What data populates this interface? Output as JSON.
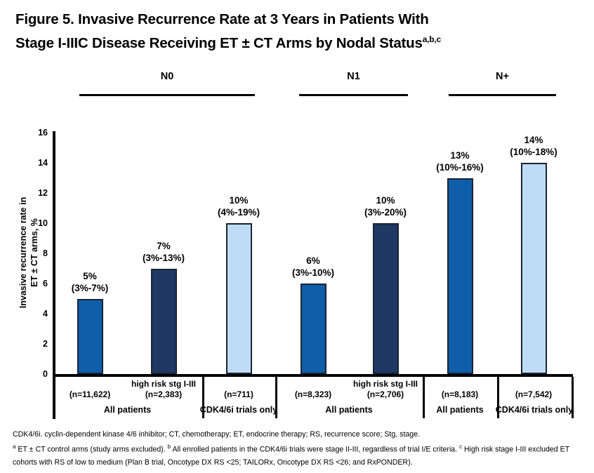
{
  "figure": {
    "title_line1": "Figure 5. Invasive Recurrence Rate at 3 Years in Patients With",
    "title_line2": "Stage I-IIIC Disease Receiving ET ± CT Arms by Nodal Status",
    "title_superscript": "a,b,c"
  },
  "chart_data": {
    "type": "bar",
    "title": "Figure 5. Invasive Recurrence Rate at 3 Years in Patients With Stage I-IIIC Disease Receiving ET ± CT Arms by Nodal Status",
    "ylabel_line1": "Invasive recurrence rate in",
    "ylabel_line2": "ET ± CT arms, %",
    "ylim": [
      0,
      16
    ],
    "yticks": [
      0,
      2,
      4,
      6,
      8,
      10,
      12,
      14,
      16
    ],
    "grid": false,
    "legend": "none",
    "groups": [
      {
        "label": "N0",
        "line_x": [
          113,
          363
        ]
      },
      {
        "label": "N1",
        "line_x": [
          426,
          581
        ]
      },
      {
        "label": "N+",
        "line_x": [
          639,
          792
        ]
      }
    ],
    "bars": [
      {
        "group": "N0",
        "value": 5,
        "label_pct": "5%",
        "label_ci": "(3%-7%)",
        "sublabel": "",
        "n_label": "(n=11,622)",
        "color_key": "medium_blue",
        "center_x": 128
      },
      {
        "group": "N0",
        "value": 7,
        "label_pct": "7%",
        "label_ci": "(3%-13%)",
        "sublabel": "high risk stg I-III",
        "n_label": "(n=2,383)",
        "color_key": "dark_navy",
        "center_x": 233
      },
      {
        "group": "N0",
        "value": 10,
        "label_pct": "10%",
        "label_ci": "(4%-19%)",
        "sublabel": "",
        "n_label": "(n=711)",
        "color_key": "light_blue",
        "center_x": 340
      },
      {
        "group": "N1",
        "value": 6,
        "label_pct": "6%",
        "label_ci": "(3%-10%)",
        "sublabel": "",
        "n_label": "(n=8,323)",
        "color_key": "medium_blue",
        "center_x": 446
      },
      {
        "group": "N1",
        "value": 10,
        "label_pct": "10%",
        "label_ci": "(3%-20%)",
        "sublabel": "high risk stg I-III",
        "n_label": "(n=2,706)",
        "color_key": "dark_navy",
        "center_x": 549
      },
      {
        "group": "N+",
        "value": 13,
        "label_pct": "13%",
        "label_ci": "(10%-16%)",
        "sublabel": "",
        "n_label": "(n=8,183)",
        "color_key": "medium_blue",
        "center_x": 655
      },
      {
        "group": "N+",
        "value": 14,
        "label_pct": "14%",
        "label_ci": "(10%-18%)",
        "sublabel": "",
        "n_label": "(n=7,542)",
        "color_key": "light_blue",
        "center_x": 760
      }
    ],
    "sections": [
      {
        "label": "All patients",
        "x_range": [
          75,
          288
        ]
      },
      {
        "label": "CDK4/6i trials only",
        "x_range": [
          288,
          392
        ]
      },
      {
        "label": "All patients",
        "x_range": [
          392,
          602
        ]
      },
      {
        "label": "All patients",
        "x_range": [
          602,
          708
        ]
      },
      {
        "label": "CDK4/6i trials only",
        "x_range": [
          708,
          814
        ]
      }
    ],
    "colors": {
      "medium_blue": "#0F5EA9",
      "dark_navy": "#1F3864",
      "light_blue": "#BEDCF5"
    }
  },
  "footnotes": {
    "abbreviations": "CDK4/6i. cyclin-dependent kinase 4/6 inhibitor; CT, chemotherapy; ET, endocrine therapy; RS, recurrence score; Stg, stage.",
    "sup_a": "a",
    "note_a": " ET ± CT control arms (study arms excluded). ",
    "sup_b": "b",
    "note_b": " All enrolled patients in the CDK4/6i trials were stage II-III, regardless of trial I/E criteria. ",
    "sup_c": "c",
    "note_c": " High risk stage I-III excluded ET cohorts with RS of low to medium (Plan B trial, Oncotype DX RS <25; TAILORx, Oncotype DX RS <26; and RxPONDER)."
  }
}
